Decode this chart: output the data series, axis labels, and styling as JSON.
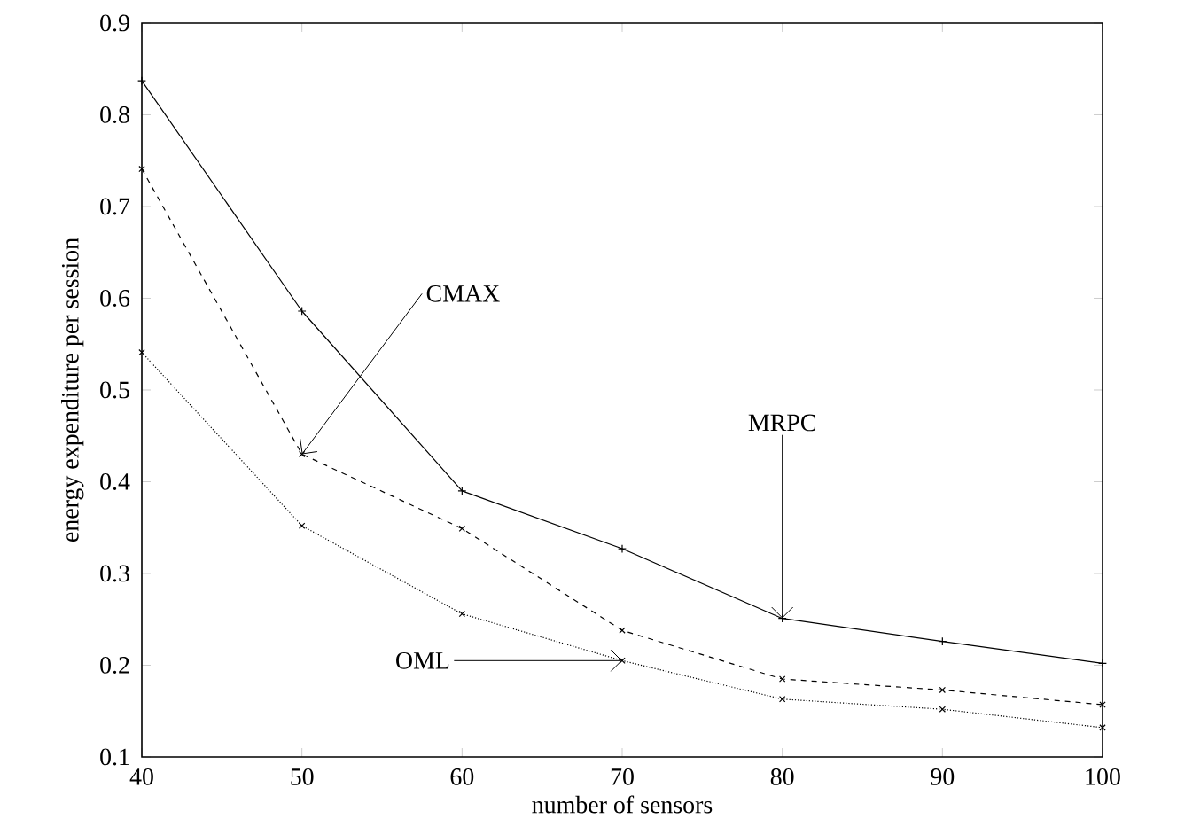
{
  "chart_data": {
    "type": "line",
    "xlabel": "number of sensors",
    "ylabel": "energy expenditure per session",
    "x": [
      40,
      50,
      60,
      70,
      80,
      90,
      100
    ],
    "series": [
      {
        "color": "#000000",
        "marker": "plus",
        "line_style": "solid",
        "values": [
          0.837,
          0.586,
          0.39,
          0.327,
          0.251,
          0.226,
          0.202
        ]
      },
      {
        "color": "#000000",
        "marker": "cross",
        "line_style": "dashed",
        "values": [
          0.741,
          0.43,
          0.349,
          0.238,
          0.185,
          0.173,
          0.157
        ]
      },
      {
        "color": "#000000",
        "marker": "cross",
        "line_style": "dotted",
        "values": [
          0.541,
          0.352,
          0.256,
          0.205,
          0.163,
          0.152,
          0.132
        ]
      }
    ],
    "annotations": [
      {
        "text": "CMAX",
        "x": 50,
        "y": 0.43
      },
      {
        "text": "MRPC",
        "x": 80,
        "y": 0.251
      },
      {
        "text": "OML",
        "x": 70,
        "y": 0.205
      }
    ],
    "xlim": [
      40,
      100
    ],
    "ylim": [
      0.1,
      0.9
    ],
    "xticks": [
      40,
      50,
      60,
      70,
      80,
      90,
      100
    ],
    "yticks": [
      0.1,
      0.2,
      0.3,
      0.4,
      0.5,
      0.6,
      0.7,
      0.8,
      0.9
    ],
    "grid": false
  }
}
